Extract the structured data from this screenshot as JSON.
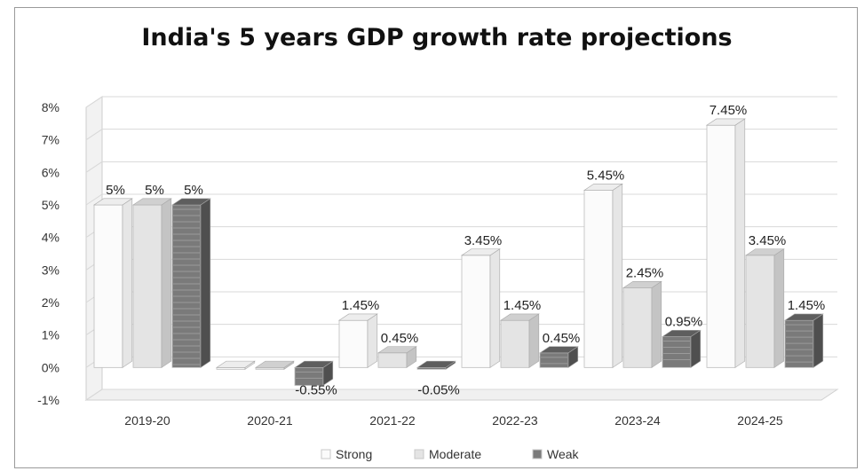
{
  "chart_data": {
    "type": "bar",
    "title": "India's 5 years GDP growth rate projections",
    "categories": [
      "2019-20",
      "2020-21",
      "2021-22",
      "2022-23",
      "2023-24",
      "2024-25"
    ],
    "series": [
      {
        "name": "Strong",
        "values": [
          5,
          0.0,
          1.45,
          3.45,
          5.45,
          7.45
        ],
        "labels": [
          "5%",
          "",
          "1.45%",
          "3.45%",
          "5.45%",
          "7.45%"
        ]
      },
      {
        "name": "Moderate",
        "values": [
          5,
          0.0,
          0.45,
          1.45,
          2.45,
          3.45
        ],
        "labels": [
          "5%",
          "",
          "0.45%",
          "1.45%",
          "2.45%",
          "3.45%"
        ]
      },
      {
        "name": "Weak",
        "values": [
          5,
          -0.55,
          -0.05,
          0.45,
          0.95,
          1.45
        ],
        "labels": [
          "5%",
          "-0.55%",
          "-0.05%",
          "0.45%",
          "0.95%",
          "1.45%"
        ]
      }
    ],
    "yticks": [
      "8%",
      "7%",
      "6%",
      "5%",
      "4%",
      "3%",
      "2%",
      "1%",
      "0%",
      "-1%"
    ],
    "ylim": [
      -1,
      8
    ],
    "grid": true,
    "legend": "bottom",
    "colors": {
      "Strong": "#f4f4f4",
      "Moderate": "#d9d9d9",
      "Weak": "#6f6f6f"
    }
  }
}
